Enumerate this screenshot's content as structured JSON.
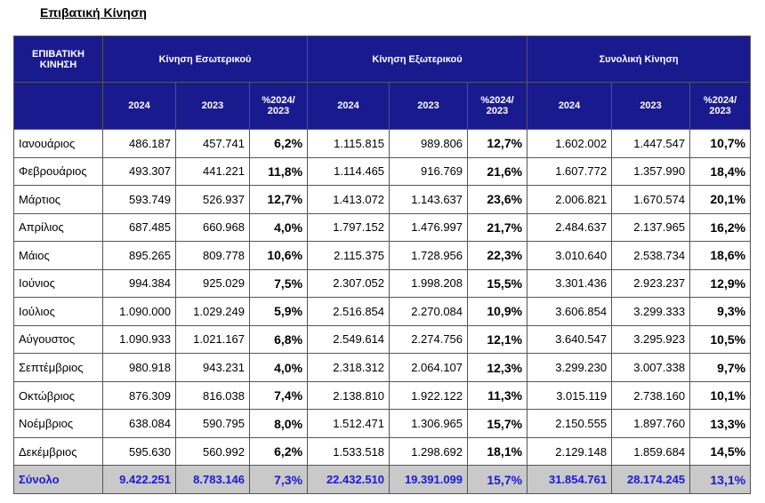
{
  "header": {
    "title": "Επιβατική Κίνηση"
  },
  "table": {
    "group_headers": [
      "ΕΠΙΒΑΤΙΚΗ ΚΙΝΗΣΗ",
      "Κίνηση Εσωτερικού",
      "Κίνηση Εξωτερικού",
      "Συνολική Κίνηση"
    ],
    "sub_headers": [
      "2024",
      "2023",
      "%2024/\n2023",
      "2024",
      "2023",
      "%2024/\n2023",
      "2024",
      "2023",
      "%2024/\n2023"
    ],
    "rows": [
      [
        "Ιανουάριος",
        "486.187",
        "457.741",
        "6,2%",
        "1.115.815",
        "989.806",
        "12,7%",
        "1.602.002",
        "1.447.547",
        "10,7%"
      ],
      [
        "Φεβρουάριος",
        "493.307",
        "441.221",
        "11,8%",
        "1.114.465",
        "916.769",
        "21,6%",
        "1.607.772",
        "1.357.990",
        "18,4%"
      ],
      [
        "Μάρτιος",
        "593.749",
        "526.937",
        "12,7%",
        "1.413.072",
        "1.143.637",
        "23,6%",
        "2.006.821",
        "1.670.574",
        "20,1%"
      ],
      [
        "Απρίλιος",
        "687.485",
        "660.968",
        "4,0%",
        "1.797.152",
        "1.476.997",
        "21,7%",
        "2.484.637",
        "2.137.965",
        "16,2%"
      ],
      [
        "Μάιος",
        "895.265",
        "809.778",
        "10,6%",
        "2.115.375",
        "1.728.956",
        "22,3%",
        "3.010.640",
        "2.538.734",
        "18,6%"
      ],
      [
        "Ιούνιος",
        "994.384",
        "925.029",
        "7,5%",
        "2.307.052",
        "1.998.208",
        "15,5%",
        "3.301.436",
        "2.923.237",
        "12,9%"
      ],
      [
        "Ιούλιος",
        "1.090.000",
        "1.029.249",
        "5,9%",
        "2.516.854",
        "2.270.084",
        "10,9%",
        "3.606.854",
        "3.299.333",
        "9,3%"
      ],
      [
        "Αύγουστος",
        "1.090.933",
        "1.021.167",
        "6,8%",
        "2.549.614",
        "2.274.756",
        "12,1%",
        "3.640.547",
        "3.295.923",
        "10,5%"
      ],
      [
        "Σεπτέμβριος",
        "980.918",
        "943.231",
        "4,0%",
        "2.318.312",
        "2.064.107",
        "12,3%",
        "3.299.230",
        "3.007.338",
        "9,7%"
      ],
      [
        "Οκτώβριος",
        "876.309",
        "816.038",
        "7,4%",
        "2.138.810",
        "1.922.122",
        "11,3%",
        "3.015.119",
        "2.738.160",
        "10,1%"
      ],
      [
        "Νοέμβριος",
        "638.084",
        "590.795",
        "8,0%",
        "1.512.471",
        "1.306.965",
        "15,7%",
        "2.150.555",
        "1.897.760",
        "13,3%"
      ],
      [
        "Δεκέμβριος",
        "595.630",
        "560.992",
        "6,2%",
        "1.533.518",
        "1.298.692",
        "18,1%",
        "2.129.148",
        "1.859.684",
        "14,5%"
      ]
    ],
    "total": [
      "Σύνολο",
      "9.422.251",
      "8.783.146",
      "7,3%",
      "22.432.510",
      "19.391.099",
      "15,7%",
      "31.854.761",
      "28.174.245",
      "13,1%"
    ]
  }
}
